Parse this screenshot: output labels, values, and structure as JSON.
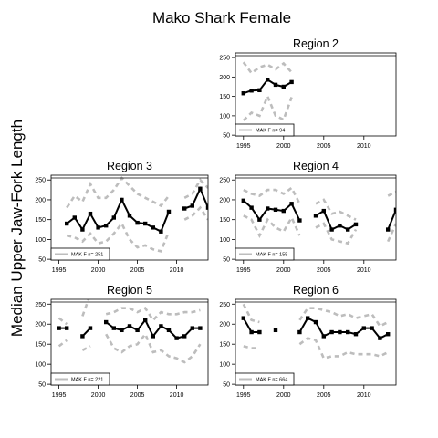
{
  "title": "Mako Shark Female",
  "ylabel": "Median Upper Jaw-Fork Length",
  "chart_data": [
    {
      "type": "line",
      "title": "Region 2",
      "legend": "MAK F n= 94",
      "xlim": [
        1994,
        2014
      ],
      "ylim": [
        48,
        262
      ],
      "xticks": [
        1995,
        2000,
        2005,
        2010
      ],
      "yticks": [
        50,
        100,
        150,
        200,
        250
      ],
      "series": [
        {
          "role": "median",
          "x": [
            1995,
            1996,
            1997,
            1998,
            1999,
            2000,
            2001
          ],
          "y": [
            158,
            165,
            166,
            193,
            180,
            175,
            187
          ]
        },
        {
          "role": "upper",
          "x": [
            1995,
            1996,
            1997,
            1998,
            1999,
            2000,
            2001
          ],
          "y": [
            238,
            210,
            225,
            232,
            220,
            235,
            212
          ]
        },
        {
          "role": "lower",
          "x": [
            1995,
            1996,
            1997,
            1998,
            1999,
            2000,
            2001
          ],
          "y": [
            88,
            108,
            100,
            150,
            100,
            90,
            148
          ]
        }
      ]
    },
    {
      "type": "line",
      "title": "Region 3",
      "legend": "MAK F n= 251",
      "xlim": [
        1994,
        2014
      ],
      "ylim": [
        48,
        262
      ],
      "xticks": [
        1995,
        2000,
        2005,
        2010
      ],
      "yticks": [
        50,
        100,
        150,
        200,
        250
      ],
      "series": [
        {
          "role": "median",
          "x": [
            1996,
            1997,
            1998,
            1999,
            2000,
            2001,
            2002,
            2003,
            2004,
            2005,
            2006,
            2007,
            2008,
            2009,
            null,
            2011,
            2012,
            2013,
            2014
          ],
          "y": [
            140,
            155,
            125,
            165,
            130,
            135,
            155,
            200,
            160,
            142,
            140,
            130,
            120,
            170,
            null,
            178,
            185,
            228,
            180
          ]
        },
        {
          "role": "upper",
          "x": [
            1996,
            1997,
            1998,
            1999,
            2000,
            2001,
            2002,
            2003,
            2004,
            2005,
            2006,
            2007,
            2008,
            2009,
            null,
            2011,
            2012,
            2013,
            2014
          ],
          "y": [
            180,
            210,
            195,
            240,
            205,
            205,
            225,
            255,
            235,
            215,
            205,
            195,
            185,
            210,
            null,
            205,
            215,
            250,
            230
          ]
        },
        {
          "role": "lower",
          "x": [
            1996,
            1997,
            1998,
            1999,
            2000,
            2001,
            2002,
            2003,
            2004,
            2005,
            2006,
            2007,
            2008,
            2009,
            null,
            2011,
            2012,
            2013,
            2014
          ],
          "y": [
            110,
            105,
            95,
            115,
            90,
            95,
            115,
            140,
            100,
            80,
            85,
            75,
            70,
            120,
            null,
            150,
            160,
            180,
            150
          ]
        }
      ]
    },
    {
      "type": "line",
      "title": "Region 4",
      "legend": "MAK F n= 155",
      "xlim": [
        1994,
        2014
      ],
      "ylim": [
        48,
        262
      ],
      "xticks": [
        1995,
        2000,
        2005,
        2010
      ],
      "yticks": [
        50,
        100,
        150,
        200,
        250
      ],
      "series": [
        {
          "role": "median",
          "x": [
            1995,
            1996,
            1997,
            1998,
            1999,
            2000,
            2001,
            2002,
            null,
            2004,
            2005,
            2006,
            2007,
            2008,
            2009,
            null,
            2013,
            2014
          ],
          "y": [
            198,
            180,
            150,
            178,
            175,
            172,
            190,
            148,
            null,
            160,
            172,
            125,
            135,
            125,
            138,
            null,
            125,
            175
          ]
        },
        {
          "role": "upper",
          "x": [
            1995,
            1996,
            1997,
            1998,
            1999,
            2000,
            2001,
            2002,
            null,
            2004,
            2005,
            2006,
            2007,
            2008,
            2009,
            null,
            2013,
            2014
          ],
          "y": [
            225,
            215,
            210,
            225,
            225,
            215,
            230,
            190,
            null,
            190,
            200,
            165,
            170,
            160,
            150,
            null,
            210,
            220
          ]
        },
        {
          "role": "lower",
          "x": [
            1995,
            1996,
            1997,
            1998,
            1999,
            2000,
            2001,
            2002,
            null,
            2004,
            2005,
            2006,
            2007,
            2008,
            2009,
            null,
            2013,
            2014
          ],
          "y": [
            160,
            150,
            110,
            150,
            130,
            120,
            155,
            110,
            null,
            130,
            140,
            100,
            95,
            90,
            125,
            null,
            95,
            140
          ]
        }
      ]
    },
    {
      "type": "line",
      "title": "Region 5",
      "legend": "MAK F n= 221",
      "xlim": [
        1994,
        2014
      ],
      "ylim": [
        48,
        262
      ],
      "xticks": [
        1995,
        2000,
        2005,
        2010
      ],
      "yticks": [
        50,
        100,
        150,
        200,
        250
      ],
      "series": [
        {
          "role": "median",
          "x": [
            1995,
            1996,
            null,
            1998,
            1999,
            null,
            2001,
            2002,
            2003,
            2004,
            2005,
            2006,
            2007,
            2008,
            2009,
            2010,
            2011,
            2012,
            2013,
            2014
          ],
          "y": [
            190,
            190,
            null,
            170,
            190,
            null,
            205,
            190,
            185,
            195,
            185,
            210,
            170,
            195,
            185,
            165,
            170,
            190,
            190,
            null
          ]
        },
        {
          "role": "upper",
          "x": [
            1995,
            1996,
            null,
            1998,
            1999,
            null,
            2001,
            2002,
            2003,
            2004,
            2005,
            2006,
            2007,
            2008,
            2009,
            2010,
            2011,
            2012,
            2013,
            2014
          ],
          "y": [
            215,
            200,
            null,
            220,
            275,
            null,
            225,
            230,
            240,
            240,
            230,
            240,
            210,
            230,
            225,
            225,
            230,
            230,
            235,
            null
          ]
        },
        {
          "role": "lower",
          "x": [
            1995,
            1996,
            null,
            1998,
            1999,
            null,
            2001,
            2002,
            2003,
            2004,
            2005,
            2006,
            2007,
            2008,
            2009,
            2010,
            2011,
            2012,
            2013,
            2014
          ],
          "y": [
            145,
            160,
            null,
            135,
            145,
            null,
            175,
            140,
            130,
            145,
            150,
            175,
            130,
            135,
            120,
            115,
            105,
            120,
            150,
            null
          ]
        }
      ]
    },
    {
      "type": "line",
      "title": "Region 6",
      "legend": "MAK F n= 664",
      "xlim": [
        1994,
        2014
      ],
      "ylim": [
        48,
        262
      ],
      "xticks": [
        1995,
        2000,
        2005,
        2010
      ],
      "yticks": [
        50,
        100,
        150,
        200,
        250
      ],
      "series": [
        {
          "role": "median",
          "x": [
            1995,
            1996,
            1997,
            null,
            1999,
            null,
            2002,
            2003,
            2004,
            2005,
            2006,
            2007,
            2008,
            2009,
            2010,
            2011,
            2012,
            2013,
            2014
          ],
          "y": [
            215,
            180,
            180,
            null,
            185,
            null,
            180,
            215,
            205,
            170,
            180,
            180,
            180,
            175,
            190,
            190,
            165,
            175,
            null
          ]
        },
        {
          "role": "upper",
          "x": [
            1995,
            1996,
            1997,
            null,
            1999,
            null,
            2002,
            2003,
            2004,
            2005,
            2006,
            2007,
            2008,
            2009,
            2010,
            2011,
            2012,
            2013,
            2014
          ],
          "y": [
            250,
            210,
            205,
            null,
            205,
            null,
            210,
            240,
            240,
            235,
            230,
            220,
            225,
            215,
            220,
            225,
            195,
            205,
            null
          ]
        },
        {
          "role": "lower",
          "x": [
            1995,
            1996,
            1997,
            null,
            1999,
            null,
            2002,
            2003,
            2004,
            2005,
            2006,
            2007,
            2008,
            2009,
            2010,
            2011,
            2012,
            2013,
            2014
          ],
          "y": [
            145,
            140,
            140,
            null,
            150,
            null,
            150,
            165,
            160,
            115,
            120,
            120,
            130,
            125,
            125,
            125,
            120,
            130,
            null
          ]
        }
      ]
    }
  ]
}
